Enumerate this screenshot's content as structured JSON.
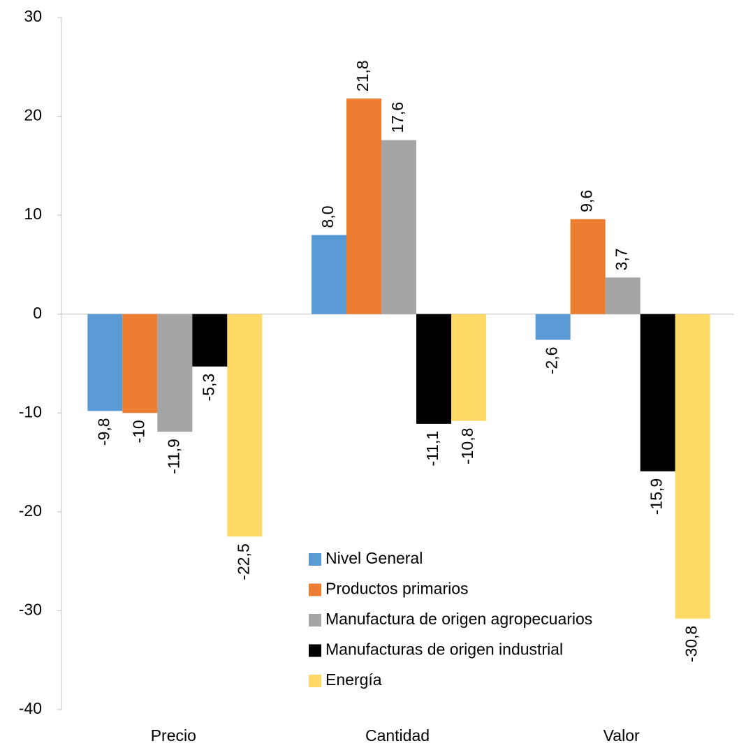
{
  "chart_data": {
    "type": "bar",
    "categories": [
      "Precio",
      "Cantidad",
      "Valor"
    ],
    "series": [
      {
        "name": "Nivel General",
        "color": "#5b9bd5",
        "values": [
          -9.8,
          8.0,
          -2.6
        ],
        "value_labels": [
          "-9,8",
          "8,0",
          "-2,6"
        ]
      },
      {
        "name": "Productos primarios",
        "color": "#ed7d31",
        "values": [
          -10,
          21.8,
          9.6
        ],
        "value_labels": [
          "-10",
          "21,8",
          "9,6"
        ]
      },
      {
        "name": "Manufactura de origen agropecuarios",
        "color": "#a5a5a5",
        "values": [
          -11.9,
          17.6,
          3.7
        ],
        "value_labels": [
          "-11,9",
          "17,6",
          "3,7"
        ]
      },
      {
        "name": "Manufacturas de origen industrial",
        "color": "#000000",
        "values": [
          -5.3,
          -11.1,
          -15.9
        ],
        "value_labels": [
          "-5,3",
          "-11,1",
          "-15,9"
        ]
      },
      {
        "name": "Energía",
        "color": "#ffd966",
        "values": [
          -22.5,
          -10.8,
          -30.8
        ],
        "value_labels": [
          "-22,5",
          "-10,8",
          "-30,8"
        ]
      }
    ],
    "ylim": [
      -40,
      30
    ],
    "yticks": [
      -40,
      -30,
      -20,
      -10,
      0,
      10,
      20,
      30
    ],
    "grid": false
  }
}
